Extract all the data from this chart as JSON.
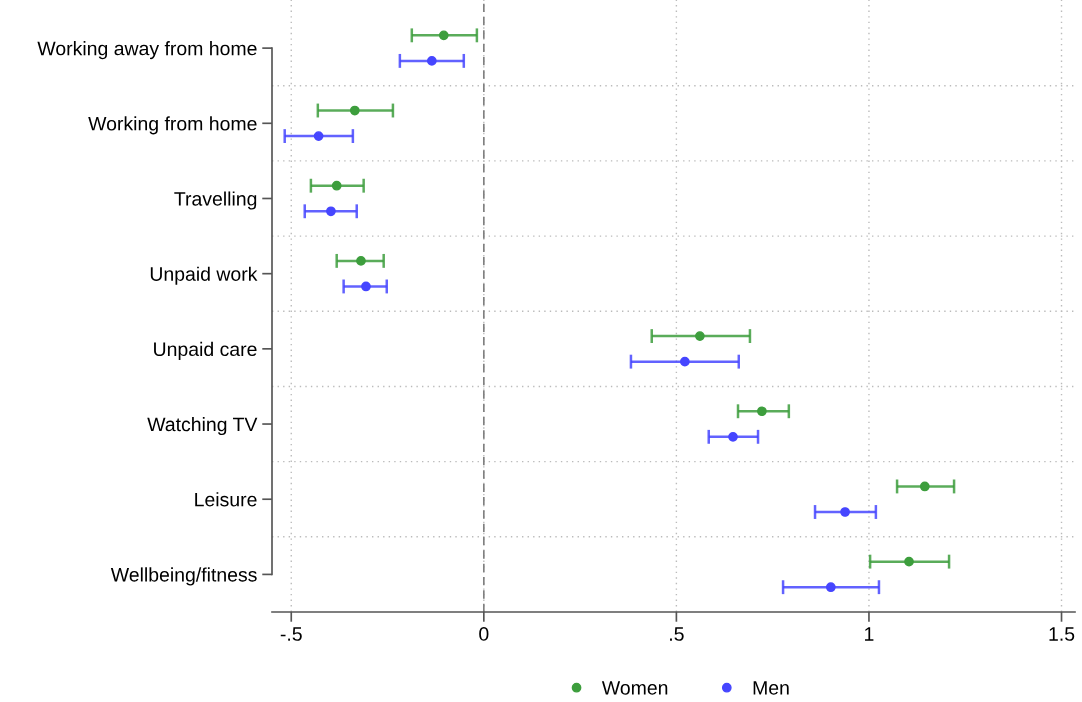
{
  "chart_data": {
    "type": "scatter",
    "orientation": "horizontal",
    "marker": "circle",
    "grid": true,
    "legend": "bottom",
    "categories": [
      "Working away from home",
      "Working from home",
      "Travelling",
      "Unpaid work",
      "Unpaid care",
      "Watching TV",
      "Leisure",
      "Wellbeing/fitness"
    ],
    "xlim": [
      -0.55,
      1.535
    ],
    "xticks": [
      {
        "value": -0.5,
        "label": "-.5"
      },
      0,
      {
        "value": 0.5,
        "label": ".5"
      },
      1,
      1.5
    ],
    "ref_lines": [
      {
        "axis": "x",
        "value": 0,
        "color": "#808080",
        "line_style": "dashed"
      }
    ],
    "series": [
      {
        "name": "Women",
        "color": "#3d9e3d",
        "values": [
          -0.104,
          -0.335,
          -0.382,
          -0.319,
          0.561,
          0.722,
          1.145,
          1.104
        ],
        "errors": [
          [
            -0.187,
            -0.018
          ],
          [
            -0.431,
            -0.236
          ],
          [
            -0.449,
            -0.312
          ],
          [
            -0.382,
            -0.26
          ],
          [
            0.436,
            0.691
          ],
          [
            0.66,
            0.792
          ],
          [
            1.073,
            1.221
          ],
          [
            1.003,
            1.208
          ]
        ]
      },
      {
        "name": "Men",
        "color": "#4646ff",
        "values": [
          -0.135,
          -0.429,
          -0.397,
          -0.306,
          0.522,
          0.647,
          0.938,
          0.901
        ],
        "errors": [
          [
            -0.218,
            -0.052
          ],
          [
            -0.517,
            -0.34
          ],
          [
            -0.465,
            -0.33
          ],
          [
            -0.364,
            -0.252
          ],
          [
            0.382,
            0.662
          ],
          [
            0.584,
            0.712
          ],
          [
            0.86,
            1.018
          ],
          [
            0.777,
            1.026
          ]
        ]
      }
    ]
  }
}
